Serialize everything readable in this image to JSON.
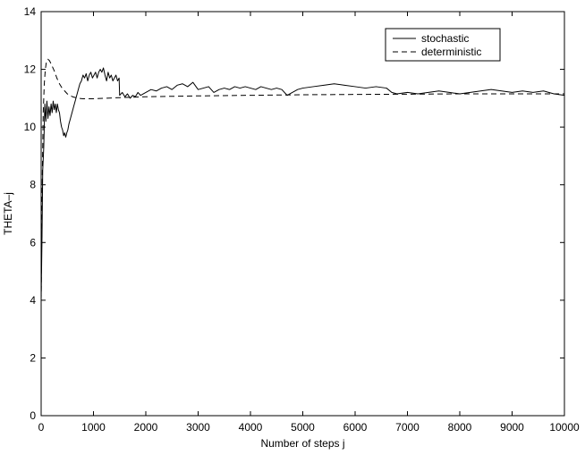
{
  "chart_data": {
    "type": "line",
    "title": "",
    "xlabel": "Number of steps j",
    "ylabel": "THETA–j",
    "xlim": [
      0,
      10000
    ],
    "ylim": [
      0,
      14
    ],
    "xticks": [
      0,
      1000,
      2000,
      3000,
      4000,
      5000,
      6000,
      7000,
      8000,
      9000,
      10000
    ],
    "yticks": [
      0,
      2,
      4,
      6,
      8,
      10,
      12,
      14
    ],
    "grid": false,
    "legend_position": "top-right",
    "series": [
      {
        "name": "stochastic",
        "style": "solid",
        "color": "#000000",
        "points": [
          [
            0,
            4.0
          ],
          [
            15,
            6.0
          ],
          [
            30,
            8.5
          ],
          [
            50,
            9.3
          ],
          [
            70,
            10.8
          ],
          [
            90,
            10.2
          ],
          [
            110,
            10.9
          ],
          [
            130,
            10.3
          ],
          [
            150,
            10.7
          ],
          [
            170,
            10.4
          ],
          [
            190,
            10.8
          ],
          [
            210,
            10.5
          ],
          [
            230,
            10.9
          ],
          [
            250,
            10.6
          ],
          [
            270,
            10.8
          ],
          [
            290,
            10.5
          ],
          [
            310,
            10.8
          ],
          [
            330,
            10.6
          ],
          [
            350,
            10.5
          ],
          [
            370,
            10.2
          ],
          [
            390,
            10.0
          ],
          [
            410,
            9.9
          ],
          [
            430,
            9.7
          ],
          [
            450,
            9.8
          ],
          [
            470,
            9.65
          ],
          [
            490,
            9.8
          ],
          [
            510,
            9.9
          ],
          [
            530,
            10.1
          ],
          [
            560,
            10.3
          ],
          [
            590,
            10.5
          ],
          [
            620,
            10.7
          ],
          [
            650,
            10.9
          ],
          [
            680,
            11.1
          ],
          [
            710,
            11.3
          ],
          [
            740,
            11.5
          ],
          [
            770,
            11.6
          ],
          [
            800,
            11.8
          ],
          [
            830,
            11.7
          ],
          [
            860,
            11.85
          ],
          [
            890,
            11.6
          ],
          [
            920,
            11.8
          ],
          [
            950,
            11.9
          ],
          [
            980,
            11.7
          ],
          [
            1010,
            11.8
          ],
          [
            1040,
            11.9
          ],
          [
            1070,
            11.7
          ],
          [
            1100,
            11.9
          ],
          [
            1130,
            12.0
          ],
          [
            1160,
            11.9
          ],
          [
            1190,
            12.05
          ],
          [
            1220,
            11.8
          ],
          [
            1250,
            11.6
          ],
          [
            1280,
            11.9
          ],
          [
            1310,
            11.7
          ],
          [
            1340,
            11.8
          ],
          [
            1370,
            11.6
          ],
          [
            1400,
            11.7
          ],
          [
            1430,
            11.8
          ],
          [
            1460,
            11.6
          ],
          [
            1490,
            11.7
          ],
          [
            1500,
            11.1
          ],
          [
            1550,
            11.2
          ],
          [
            1600,
            11.05
          ],
          [
            1650,
            11.15
          ],
          [
            1700,
            11.0
          ],
          [
            1750,
            11.1
          ],
          [
            1800,
            11.05
          ],
          [
            1850,
            11.2
          ],
          [
            1900,
            11.1
          ],
          [
            1950,
            11.15
          ],
          [
            2000,
            11.2
          ],
          [
            2100,
            11.3
          ],
          [
            2200,
            11.25
          ],
          [
            2300,
            11.35
          ],
          [
            2400,
            11.4
          ],
          [
            2500,
            11.3
          ],
          [
            2600,
            11.45
          ],
          [
            2700,
            11.5
          ],
          [
            2800,
            11.4
          ],
          [
            2900,
            11.55
          ],
          [
            3000,
            11.3
          ],
          [
            3100,
            11.35
          ],
          [
            3200,
            11.4
          ],
          [
            3300,
            11.2
          ],
          [
            3400,
            11.3
          ],
          [
            3500,
            11.35
          ],
          [
            3600,
            11.3
          ],
          [
            3700,
            11.4
          ],
          [
            3800,
            11.35
          ],
          [
            3900,
            11.4
          ],
          [
            4000,
            11.35
          ],
          [
            4100,
            11.3
          ],
          [
            4200,
            11.4
          ],
          [
            4300,
            11.35
          ],
          [
            4400,
            11.3
          ],
          [
            4500,
            11.35
          ],
          [
            4600,
            11.3
          ],
          [
            4700,
            11.1
          ],
          [
            4800,
            11.2
          ],
          [
            4900,
            11.3
          ],
          [
            5000,
            11.35
          ],
          [
            5200,
            11.4
          ],
          [
            5400,
            11.45
          ],
          [
            5600,
            11.5
          ],
          [
            5800,
            11.45
          ],
          [
            6000,
            11.4
          ],
          [
            6200,
            11.35
          ],
          [
            6400,
            11.4
          ],
          [
            6600,
            11.35
          ],
          [
            6700,
            11.2
          ],
          [
            6800,
            11.15
          ],
          [
            7000,
            11.2
          ],
          [
            7200,
            11.15
          ],
          [
            7400,
            11.2
          ],
          [
            7600,
            11.25
          ],
          [
            7800,
            11.2
          ],
          [
            8000,
            11.15
          ],
          [
            8200,
            11.2
          ],
          [
            8400,
            11.25
          ],
          [
            8600,
            11.3
          ],
          [
            8800,
            11.25
          ],
          [
            9000,
            11.2
          ],
          [
            9200,
            11.25
          ],
          [
            9400,
            11.2
          ],
          [
            9600,
            11.25
          ],
          [
            9800,
            11.15
          ],
          [
            10000,
            11.1
          ]
        ]
      },
      {
        "name": "deterministic",
        "style": "dashed",
        "color": "#000000",
        "points": [
          [
            0,
            4.0
          ],
          [
            20,
            8.0
          ],
          [
            40,
            10.5
          ],
          [
            60,
            11.5
          ],
          [
            80,
            12.0
          ],
          [
            100,
            12.25
          ],
          [
            130,
            12.35
          ],
          [
            160,
            12.3
          ],
          [
            200,
            12.15
          ],
          [
            250,
            11.95
          ],
          [
            300,
            11.7
          ],
          [
            350,
            11.5
          ],
          [
            400,
            11.35
          ],
          [
            500,
            11.15
          ],
          [
            600,
            11.05
          ],
          [
            700,
            11.0
          ],
          [
            800,
            10.98
          ],
          [
            1000,
            10.98
          ],
          [
            1500,
            11.02
          ],
          [
            2000,
            11.05
          ],
          [
            3000,
            11.08
          ],
          [
            4000,
            11.1
          ],
          [
            5000,
            11.12
          ],
          [
            6000,
            11.13
          ],
          [
            7000,
            11.14
          ],
          [
            8000,
            11.15
          ],
          [
            9000,
            11.15
          ],
          [
            10000,
            11.15
          ]
        ]
      }
    ]
  }
}
